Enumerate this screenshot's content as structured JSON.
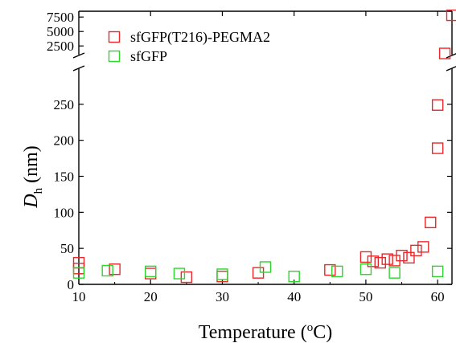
{
  "chart_data": {
    "type": "scatter",
    "xlabel": {
      "main": "Temperature (",
      "sup": "o",
      "tail": "C)"
    },
    "ylabel": {
      "main": "D",
      "sub": "h",
      "tail": " (nm)"
    },
    "xlim": [
      10,
      62
    ],
    "ylim_lower": [
      0,
      300
    ],
    "ylim_upper": [
      1000,
      8500
    ],
    "x_ticks": [
      10,
      20,
      30,
      40,
      50,
      60
    ],
    "y_ticks_lower": [
      0,
      50,
      100,
      150,
      200,
      250
    ],
    "y_ticks_upper": [
      2500,
      5000,
      7500
    ],
    "axis_break": true,
    "legend_position": "top-left",
    "series": [
      {
        "name": "sfGFP(T216)-PEGMA2",
        "color": "#e8282b",
        "marker": "open-square",
        "points": [
          [
            10,
            30
          ],
          [
            10,
            22
          ],
          [
            15,
            21
          ],
          [
            20,
            15
          ],
          [
            25,
            10
          ],
          [
            30,
            11
          ],
          [
            35,
            16
          ],
          [
            45,
            20
          ],
          [
            50,
            38
          ],
          [
            51,
            32
          ],
          [
            52,
            30
          ],
          [
            53,
            35
          ],
          [
            54,
            33
          ],
          [
            55,
            40
          ],
          [
            56,
            37
          ],
          [
            57,
            47
          ],
          [
            58,
            52
          ],
          [
            59,
            86
          ],
          [
            60,
            189
          ],
          [
            60,
            249
          ],
          [
            61,
            1200
          ],
          [
            62,
            7800
          ]
        ]
      },
      {
        "name": "sfGFP",
        "color": "#2fd52f",
        "marker": "open-square",
        "points": [
          [
            10,
            16
          ],
          [
            14,
            19
          ],
          [
            20,
            18
          ],
          [
            24,
            15
          ],
          [
            30,
            14
          ],
          [
            36,
            24
          ],
          [
            40,
            11
          ],
          [
            46,
            18
          ],
          [
            50,
            21
          ],
          [
            54,
            16
          ],
          [
            60,
            18
          ]
        ]
      }
    ]
  }
}
